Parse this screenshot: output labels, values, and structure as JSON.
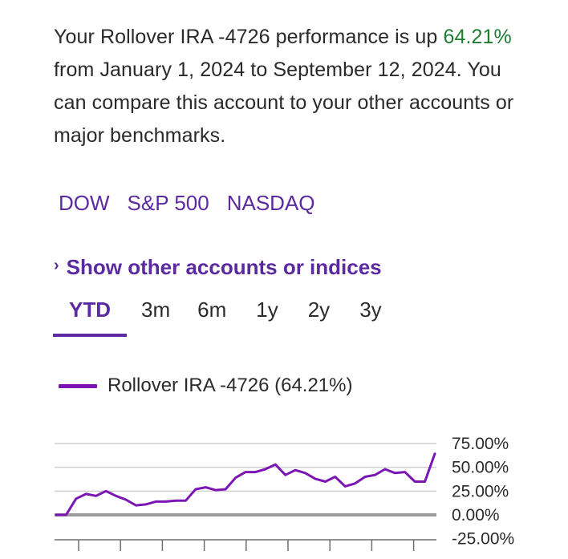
{
  "summary": {
    "prefix": "Your Rollover IRA -4726 performance is up",
    "pct": "64.21%",
    "suffix": "from January 1, 2024 to September 12, 2024. You can compare this account to your other accounts or major benchmarks."
  },
  "benchmarks": [
    "DOW",
    "S&P 500",
    "NASDAQ"
  ],
  "show_other_label": "Show other accounts or indices",
  "tabs": [
    "YTD",
    "3m",
    "6m",
    "1y",
    "2y",
    "3y"
  ],
  "active_tab": "YTD",
  "legend_label": "Rollover IRA -4726 (64.21%)",
  "colors": {
    "accent": "#5b2aa0",
    "positive": "#1e7d32",
    "series": "#7b16b4",
    "zero_line": "#9a9a9a",
    "grid": "#cfcfcf"
  },
  "icons": {
    "show_other": "chevron-right-icon"
  },
  "chart_data": {
    "type": "line",
    "series": [
      {
        "name": "Rollover IRA -4726 (64.21%)",
        "values": [
          0,
          0,
          17,
          22,
          20,
          25,
          20,
          16,
          10,
          11,
          14,
          14,
          15,
          15,
          27,
          29,
          26,
          27,
          39,
          45,
          45,
          48,
          53,
          42,
          47,
          44,
          38,
          35,
          40,
          30,
          33,
          40,
          42,
          48,
          44,
          45,
          35,
          35,
          64.21
        ]
      }
    ],
    "ylim": [
      -25,
      75
    ],
    "yticks": [
      "75.00%",
      "50.00%",
      "25.00%",
      "0.00%",
      "-25.00%"
    ],
    "grid": true
  }
}
